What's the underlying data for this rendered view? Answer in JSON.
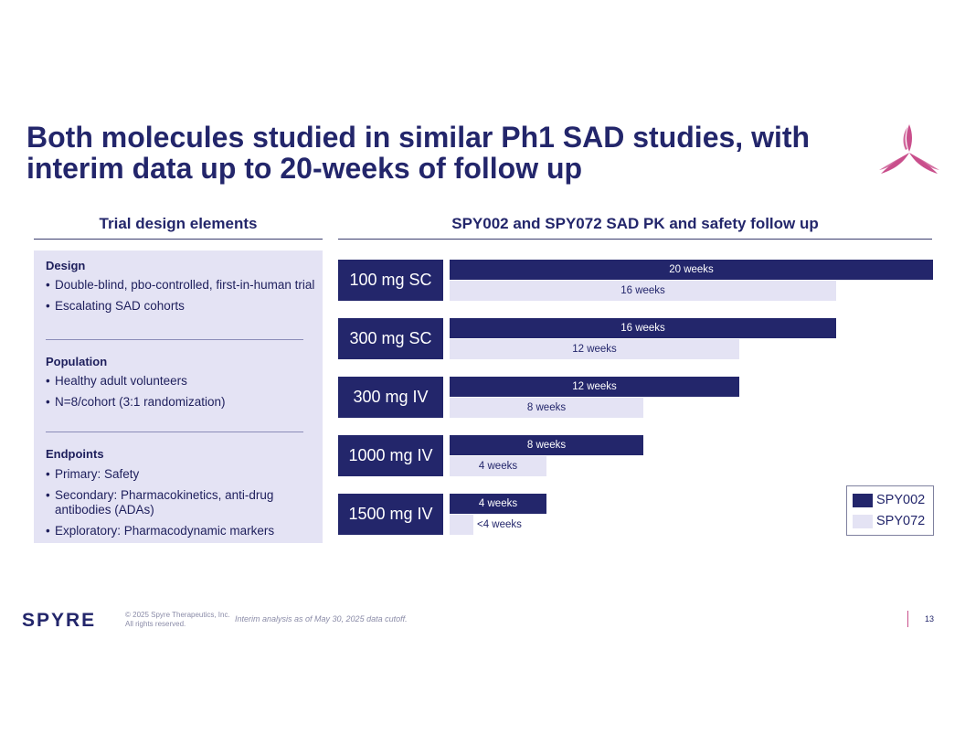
{
  "slide": {
    "title_line1": "Both molecules studied in similar Ph1 SAD studies, with",
    "title_line2": "interim data up to 20-weeks of follow up",
    "colors": {
      "navy": "#23266b",
      "lavender": "#e4e3f4",
      "magenta": "#c94f8c"
    }
  },
  "left": {
    "heading": "Trial design elements",
    "sections": [
      {
        "title": "Design",
        "bullets": [
          "Double-blind, pbo-controlled, first-in-human trial",
          "Escalating SAD cohorts"
        ]
      },
      {
        "title": "Population",
        "bullets": [
          "Healthy adult volunteers",
          "N=8/cohort (3:1 randomization)"
        ]
      },
      {
        "title": "Endpoints",
        "bullets": [
          "Primary: Safety",
          "Secondary: Pharmacokinetics, anti-drug",
          "antibodies (ADAs)",
          "Exploratory: Pharmacodynamic markers"
        ]
      }
    ],
    "bullet_glyph": "•"
  },
  "right": {
    "heading": "SPY002 and SPY072 SAD PK and safety follow up"
  },
  "chart_data": {
    "type": "bar",
    "orientation": "horizontal",
    "title": "SPY002 and SPY072 SAD PK and safety follow up",
    "categories": [
      "100 mg SC",
      "300 mg SC",
      "300 mg IV",
      "1000 mg IV",
      "1500 mg IV"
    ],
    "series": [
      {
        "name": "SPY002",
        "values": [
          20,
          16,
          12,
          8,
          4
        ],
        "labels": [
          "20 weeks",
          "16 weeks",
          "12 weeks",
          "8 weeks",
          "4 weeks"
        ],
        "color": "#23266b"
      },
      {
        "name": "SPY072",
        "values": [
          16,
          12,
          8,
          4,
          1
        ],
        "labels": [
          "16 weeks",
          "12 weeks",
          "8 weeks",
          "4 weeks",
          "<4 weeks"
        ],
        "color": "#e4e3f4"
      }
    ],
    "xlim": [
      0,
      20
    ],
    "xlabel": "",
    "ylabel": "",
    "legend": "bottom-right"
  },
  "footer": {
    "brand": "SPYRE",
    "copyright_line1": "© 2025 Spyre Therapeutics, Inc.",
    "copyright_line2": "All rights reserved.",
    "note": "Interim analysis as of May 30, 2025 data cutoff.",
    "page": "13"
  }
}
